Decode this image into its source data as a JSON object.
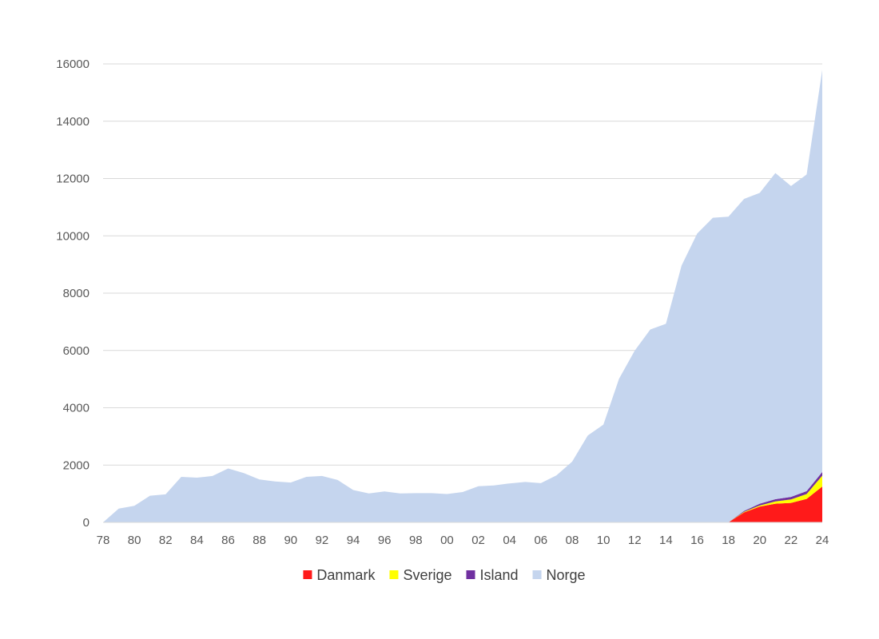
{
  "chart_data": {
    "type": "area",
    "stacked": true,
    "x": [
      "78",
      "79",
      "80",
      "81",
      "82",
      "83",
      "84",
      "85",
      "86",
      "87",
      "88",
      "89",
      "90",
      "91",
      "92",
      "93",
      "94",
      "95",
      "96",
      "97",
      "98",
      "99",
      "00",
      "01",
      "02",
      "03",
      "04",
      "05",
      "06",
      "07",
      "08",
      "09",
      "10",
      "11",
      "12",
      "13",
      "14",
      "15",
      "16",
      "17",
      "18",
      "19",
      "20",
      "21",
      "22",
      "23",
      "24"
    ],
    "x_tick_labels": [
      "78",
      "80",
      "82",
      "84",
      "86",
      "88",
      "90",
      "92",
      "94",
      "96",
      "98",
      "00",
      "02",
      "04",
      "06",
      "08",
      "10",
      "12",
      "14",
      "16",
      "18",
      "20",
      "22",
      "24"
    ],
    "series": [
      {
        "name": "Danmark",
        "color": "#ff1a1a",
        "values": [
          0,
          0,
          0,
          0,
          0,
          0,
          0,
          0,
          0,
          0,
          0,
          0,
          0,
          0,
          0,
          0,
          0,
          0,
          0,
          0,
          0,
          0,
          0,
          0,
          0,
          0,
          0,
          0,
          0,
          0,
          0,
          0,
          0,
          0,
          0,
          0,
          0,
          0,
          0,
          0,
          0,
          350,
          550,
          650,
          680,
          820,
          1250
        ]
      },
      {
        "name": "Sverige",
        "color": "#ffff00",
        "values": [
          0,
          0,
          0,
          0,
          0,
          0,
          0,
          0,
          0,
          0,
          0,
          0,
          0,
          0,
          0,
          0,
          0,
          0,
          0,
          0,
          0,
          0,
          0,
          0,
          0,
          0,
          0,
          0,
          0,
          0,
          0,
          0,
          0,
          0,
          0,
          0,
          0,
          0,
          0,
          0,
          0,
          20,
          40,
          80,
          120,
          170,
          380
        ]
      },
      {
        "name": "Island",
        "color": "#7030a0",
        "values": [
          0,
          0,
          0,
          0,
          0,
          0,
          0,
          0,
          0,
          0,
          0,
          0,
          0,
          0,
          0,
          0,
          0,
          0,
          0,
          0,
          0,
          0,
          0,
          0,
          0,
          0,
          0,
          0,
          0,
          0,
          0,
          0,
          0,
          0,
          0,
          0,
          0,
          0,
          0,
          0,
          0,
          30,
          60,
          80,
          90,
          100,
          130
        ]
      },
      {
        "name": "Norge",
        "color": "#c5d5ee",
        "values": [
          0,
          480,
          580,
          930,
          980,
          1590,
          1560,
          1620,
          1880,
          1720,
          1500,
          1430,
          1390,
          1590,
          1620,
          1480,
          1130,
          1010,
          1080,
          1010,
          1020,
          1020,
          990,
          1060,
          1260,
          1290,
          1360,
          1410,
          1370,
          1640,
          2120,
          3030,
          3410,
          5010,
          5990,
          6730,
          6930,
          8960,
          10080,
          10630,
          10670,
          10890,
          10850,
          11380,
          10850,
          11050,
          14030
        ]
      }
    ],
    "y_ticks": [
      0,
      2000,
      4000,
      6000,
      8000,
      10000,
      12000,
      14000,
      16000
    ],
    "ylim": [
      0,
      16000
    ],
    "grid": true,
    "legend_position": "bottom",
    "title": "",
    "xlabel": "",
    "ylabel": ""
  }
}
